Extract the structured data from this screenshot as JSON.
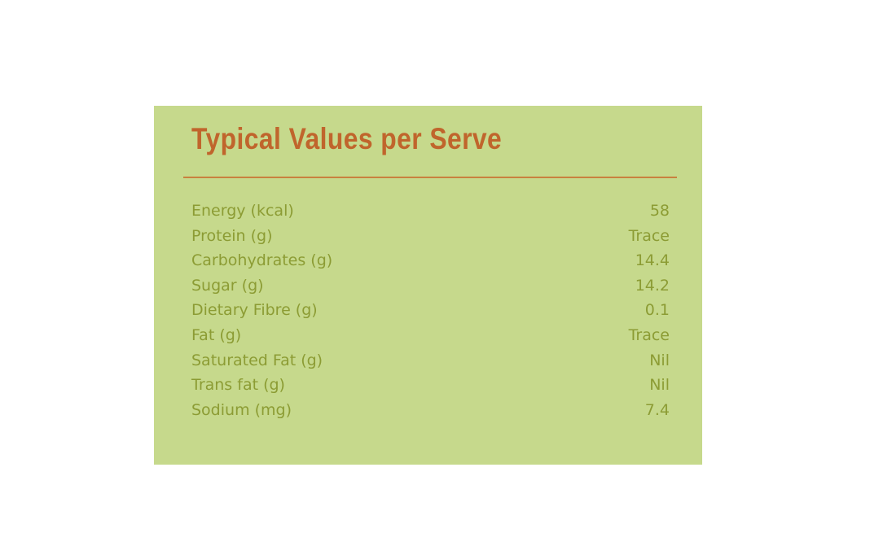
{
  "title": "Typical Values per Serve",
  "table": {
    "rows": [
      [
        "Energy (kcal)",
        58
      ],
      [
        "Protein (g)",
        "Trace"
      ],
      [
        "Carbohydrates (g)",
        14.4
      ],
      [
        "Sugar (g)",
        14.2
      ],
      [
        "Dietary Fibre (g)",
        0.1
      ],
      [
        "Fat (g)",
        "Trace"
      ],
      [
        "Saturated Fat (g)",
        "Nil"
      ],
      [
        "Trans fat (g)",
        "Nil"
      ],
      [
        "Sodium (mg)",
        7.4
      ]
    ]
  }
}
